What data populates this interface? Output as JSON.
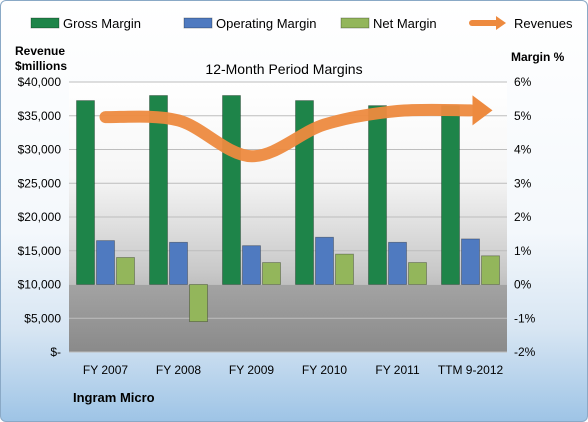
{
  "chart_data": {
    "type": "bar",
    "title": "12-Month Period Margins",
    "company": "Ingram Micro",
    "left_axis_title": [
      "Revenue",
      "$millions"
    ],
    "right_axis_title": "Margin %",
    "categories": [
      "FY 2007",
      "FY 2008",
      "FY 2009",
      "FY 2010",
      "FY 2011",
      "TTM 9-2012"
    ],
    "left_ticks": [
      "$40,000",
      "$35,000",
      "$30,000",
      "$25,000",
      "$20,000",
      "$15,000",
      "$10,000",
      "$5,000",
      "$-"
    ],
    "right_ticks": [
      "6%",
      "5%",
      "4%",
      "3%",
      "2%",
      "1%",
      "0%",
      "-1%",
      "-2%"
    ],
    "ylim_left": [
      0,
      40000
    ],
    "ylim_right": [
      -2,
      6
    ],
    "series": [
      {
        "name": "Gross Margin",
        "axis": "right",
        "color": "#1e8449",
        "values": [
          5.45,
          5.6,
          5.6,
          5.45,
          5.3,
          5.3
        ]
      },
      {
        "name": "Operating Margin",
        "axis": "right",
        "color": "#4f7ac0",
        "values": [
          1.3,
          1.25,
          1.15,
          1.4,
          1.25,
          1.35
        ]
      },
      {
        "name": "Net Margin",
        "axis": "right",
        "color": "#93b65b",
        "values": [
          0.8,
          -1.1,
          0.65,
          0.9,
          0.65,
          0.85
        ]
      },
      {
        "name": "Revenues",
        "axis": "left",
        "color": "#ed8a3f",
        "type": "line",
        "values": [
          34800,
          34300,
          29000,
          33700,
          35700,
          35800
        ]
      }
    ]
  }
}
